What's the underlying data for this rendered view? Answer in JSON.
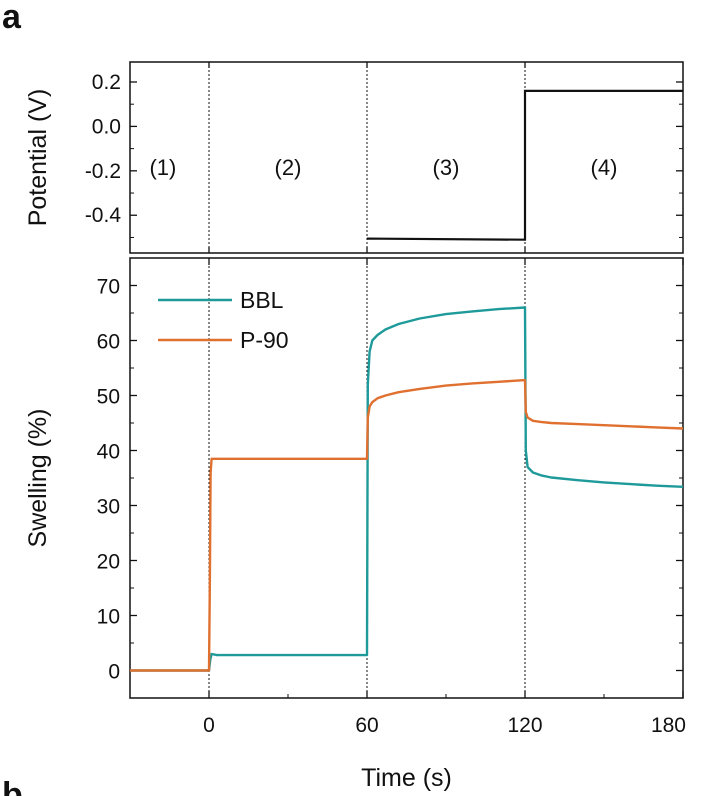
{
  "figure": {
    "panel_label": "a",
    "next_panel_label": "b"
  },
  "chart_data": [
    {
      "type": "line",
      "ylabel": "Potential (V)",
      "xlim": [
        -30,
        180
      ],
      "ylim": [
        -0.57,
        0.29
      ],
      "yticks": [
        0.2,
        0.0,
        -0.2,
        -0.4
      ],
      "ytick_labels": [
        "0.2",
        "0.0",
        "-0.2",
        "-0.4"
      ],
      "regions": [
        {
          "label": "(1)",
          "x": -17.5
        },
        {
          "label": "(2)",
          "x": 30
        },
        {
          "label": "(3)",
          "x": 90
        },
        {
          "label": "(4)",
          "x": 150
        }
      ],
      "dividers": [
        0,
        60,
        120
      ],
      "series": [
        {
          "color": "#111111",
          "x": [
            60,
            120,
            120,
            180
          ],
          "y": [
            -0.505,
            -0.51,
            0.16,
            0.16
          ]
        }
      ]
    },
    {
      "type": "line",
      "xlabel": "Time (s)",
      "ylabel": "Swelling (%)",
      "xlim": [
        -30,
        180
      ],
      "ylim": [
        -5,
        75
      ],
      "xticks": [
        0,
        60,
        120,
        180
      ],
      "xtick_labels": [
        "0",
        "60",
        "120",
        "180"
      ],
      "yticks": [
        0,
        10,
        20,
        30,
        40,
        50,
        60,
        70
      ],
      "ytick_labels": [
        "0",
        "10",
        "20",
        "30",
        "40",
        "50",
        "60",
        "70"
      ],
      "legend": "top-left",
      "series": [
        {
          "name": "BBL",
          "color": "#1f9a9a",
          "x": [
            -30,
            0,
            0.5,
            1,
            3,
            60,
            60.3,
            61,
            62,
            64,
            67,
            72,
            80,
            90,
            100,
            110,
            120,
            120.3,
            121,
            123,
            126,
            130,
            140,
            150,
            160,
            170,
            180
          ],
          "y": [
            0,
            0,
            2,
            3,
            2.8,
            2.8,
            52,
            58,
            60,
            61,
            62,
            63,
            64,
            64.8,
            65.3,
            65.7,
            66,
            40,
            37,
            36,
            35.5,
            35.1,
            34.6,
            34.2,
            33.9,
            33.6,
            33.4
          ]
        },
        {
          "name": "P-90",
          "color": "#e07030",
          "x": [
            -30,
            0,
            0.3,
            0.6,
            1,
            60,
            60.3,
            61,
            62,
            64,
            67,
            72,
            80,
            90,
            100,
            110,
            120,
            120.3,
            121,
            123,
            126,
            130,
            140,
            150,
            160,
            170,
            180
          ],
          "y": [
            0,
            0,
            15,
            36,
            38.5,
            38.5,
            46,
            48,
            48.8,
            49.5,
            50,
            50.6,
            51.2,
            51.8,
            52.2,
            52.5,
            52.8,
            47,
            46,
            45.4,
            45.2,
            45,
            44.8,
            44.6,
            44.4,
            44.2,
            44
          ]
        }
      ]
    }
  ]
}
